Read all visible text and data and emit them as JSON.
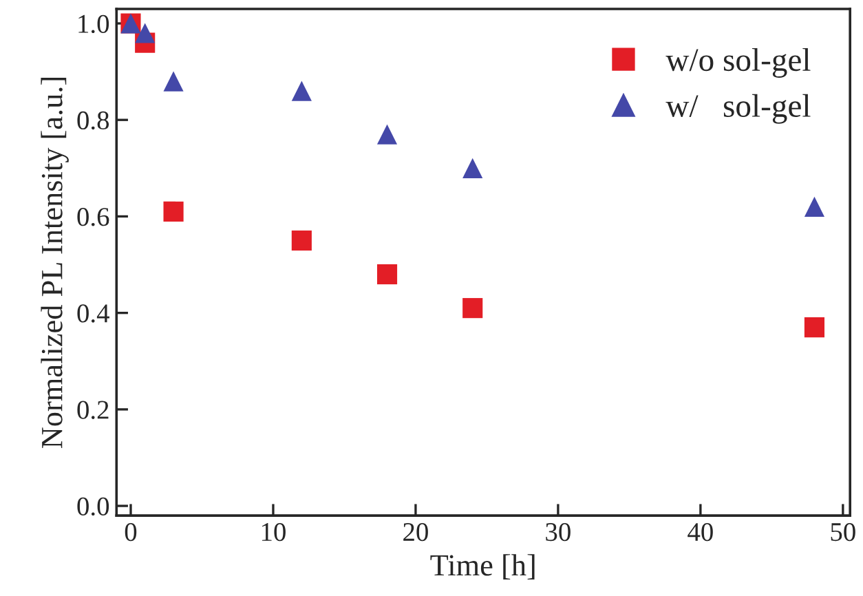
{
  "chart_data": {
    "type": "scatter",
    "xlabel": "Time [h]",
    "ylabel": "Normalized PL Intensity [a.u.]",
    "xlim": [
      -1,
      50.5
    ],
    "ylim": [
      -0.02,
      1.03
    ],
    "xticks": [
      0,
      10,
      20,
      30,
      40,
      50
    ],
    "yticks": [
      {
        "value": 0,
        "label": "0.0"
      },
      0.2,
      0.4,
      0.6,
      0.8,
      {
        "value": 1,
        "label": "1.0"
      }
    ],
    "grid": false,
    "legend": "top right",
    "series": [
      {
        "name": "w/o sol-gel",
        "color": "#e31e26",
        "marker": "square",
        "x": [
          0,
          1,
          3,
          12,
          18,
          24,
          48
        ],
        "values": [
          1.0,
          0.96,
          0.61,
          0.55,
          0.48,
          0.41,
          0.37
        ]
      },
      {
        "name": "w/   sol-gel",
        "color": "#4448a8",
        "marker": "triangle",
        "x": [
          0,
          1,
          3,
          12,
          18,
          24,
          48
        ],
        "values": [
          1.0,
          0.98,
          0.88,
          0.86,
          0.77,
          0.7,
          0.62
        ]
      }
    ]
  }
}
